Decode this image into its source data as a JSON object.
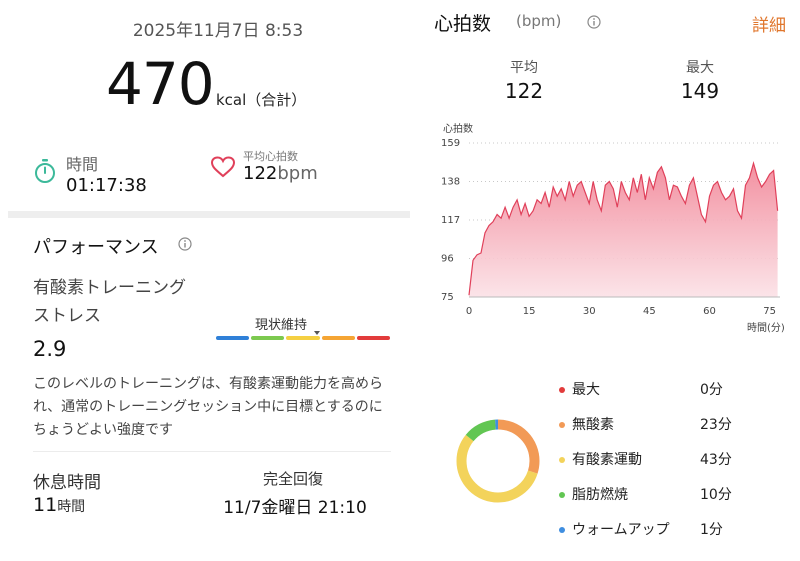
{
  "workout": {
    "datetime": "2025年11月7日 8:53",
    "calories": "470",
    "calories_unit": "kcal（合計）",
    "duration_label": "時間",
    "duration_value": "01:17:38",
    "avg_hr_label": "平均心拍数",
    "avg_hr_value": "122",
    "avg_hr_unit": "bpm"
  },
  "performance": {
    "title": "パフォーマンス",
    "info_icon": "info-icon",
    "metric_label_1": "有酸素トレーニング",
    "metric_label_2": "ストレス",
    "metric_value": "2.9",
    "state_label": "現状維持",
    "scale_colors": [
      "#2f80d8",
      "#7cc94f",
      "#f5d042",
      "#f5a534",
      "#e23b3b"
    ],
    "scale_level": 2.9,
    "scale_max": 5,
    "description": "このレベルのトレーニングは、有酸素運動能力を高められ、通常のトレーニングセッション中に目標とするのにちょうどよい強度です"
  },
  "recovery": {
    "rest_label": "休息時間",
    "rest_value": "11",
    "rest_unit": "時間",
    "full_label": "完全回復",
    "full_value": "11/7金曜日 21:10"
  },
  "heart_rate": {
    "title": "心拍数",
    "unit": "(bpm)",
    "detail_link": "詳細",
    "avg_label": "平均",
    "avg_value": "122",
    "max_label": "最大",
    "max_value": "149",
    "accent": "#e0405a"
  },
  "chart_data": {
    "type": "area",
    "title": "",
    "ylabel": "心拍数",
    "xlabel": "時間(分)",
    "xlim": [
      0,
      77.6
    ],
    "ylim": [
      75,
      159
    ],
    "y_ticks": [
      159,
      138,
      117,
      96,
      75
    ],
    "x_ticks": [
      0,
      15,
      30,
      45,
      60,
      75
    ],
    "series": [
      {
        "x": [
          0,
          1,
          2,
          3,
          4,
          5,
          6,
          7,
          8,
          9,
          10,
          11,
          12,
          13,
          14,
          15,
          16,
          17,
          18,
          19,
          20,
          21,
          22,
          23,
          24,
          25,
          26,
          27,
          28,
          29,
          30,
          31,
          32,
          33,
          34,
          35,
          36,
          37,
          38,
          39,
          40,
          41,
          42,
          43,
          44,
          45,
          46,
          47,
          48,
          49,
          50,
          51,
          52,
          53,
          54,
          55,
          56,
          57,
          58,
          59,
          60,
          61,
          62,
          63,
          64,
          65,
          66,
          67,
          68,
          69,
          70,
          71,
          72,
          73,
          74,
          75,
          76,
          77
        ],
        "values": [
          76,
          95,
          98,
          99,
          110,
          114,
          116,
          120,
          118,
          124,
          118,
          124,
          128,
          120,
          126,
          119,
          122,
          128,
          126,
          132,
          124,
          135,
          130,
          134,
          128,
          138,
          130,
          136,
          138,
          132,
          126,
          138,
          128,
          122,
          136,
          138,
          134,
          124,
          138,
          132,
          128,
          140,
          132,
          142,
          128,
          140,
          134,
          143,
          146,
          140,
          128,
          136,
          135,
          130,
          126,
          136,
          140,
          130,
          120,
          116,
          130,
          136,
          138,
          132,
          128,
          130,
          134,
          122,
          118,
          136,
          140,
          148,
          140,
          135,
          138,
          142,
          144,
          122
        ]
      }
    ]
  },
  "zones": {
    "items": [
      {
        "label": "最大",
        "value": "0分",
        "color": "#e23b3b"
      },
      {
        "label": "無酸素",
        "value": "23分",
        "color": "#f29a56"
      },
      {
        "label": "有酸素運動",
        "value": "43分",
        "color": "#f3d35b"
      },
      {
        "label": "脂肪燃焼",
        "value": "10分",
        "color": "#62c653"
      },
      {
        "label": "ウォームアップ",
        "value": "1分",
        "color": "#3f8ee0"
      }
    ],
    "donut_values": [
      0,
      23,
      43,
      10,
      1
    ]
  }
}
